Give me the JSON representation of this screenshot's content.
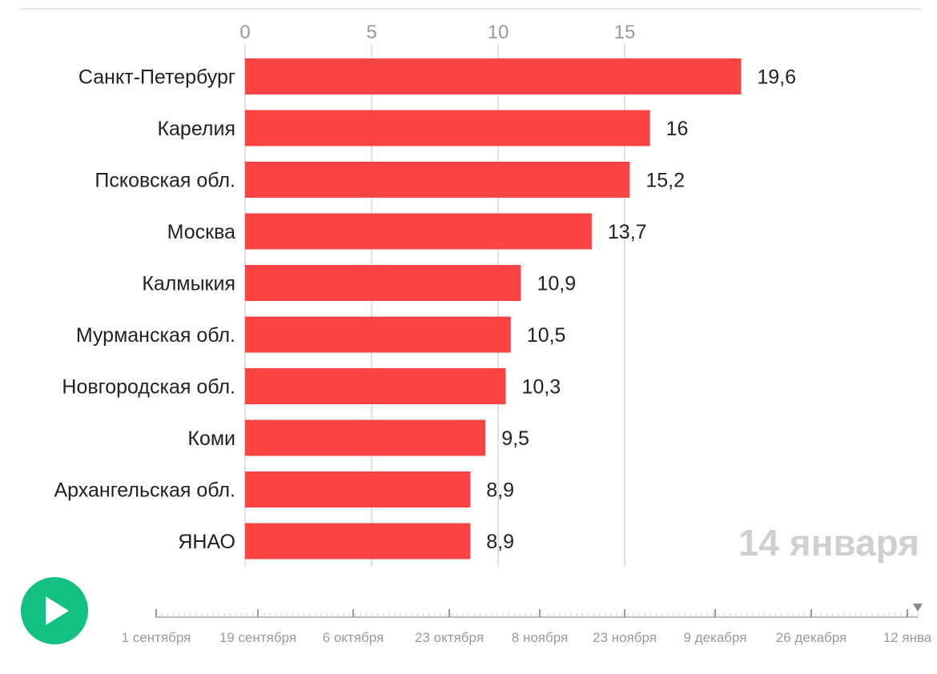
{
  "chart_data": {
    "type": "bar",
    "orientation": "horizontal",
    "categories": [
      "Санкт-Петербург",
      "Карелия",
      "Псковская обл.",
      "Москва",
      "Калмыкия",
      "Мурманская обл.",
      "Новгородская обл.",
      "Коми",
      "Архангельская обл.",
      "ЯНАО"
    ],
    "values": [
      19.6,
      16,
      15.2,
      13.7,
      10.9,
      10.5,
      10.3,
      9.5,
      8.9,
      8.9
    ],
    "value_labels": [
      "19,6",
      "16",
      "15,2",
      "13,7",
      "10,9",
      "10,5",
      "10,3",
      "9,5",
      "8,9",
      "8,9"
    ],
    "x_ticks": [
      "0",
      "5",
      "10",
      "15"
    ],
    "xlim": [
      0,
      20
    ],
    "grid": true,
    "bar_color": "#fc4445",
    "grid_color": "#e0e0e0"
  },
  "overlay_date": "14 января",
  "timeline": {
    "labels": [
      "1 сентября",
      "19 сентября",
      "6 октября",
      "23 октября",
      "8 ноября",
      "23 ноября",
      "9 декабря",
      "26 декабря",
      "12 янва"
    ]
  },
  "controls": {
    "play_icon": "play-icon",
    "play_color": "#12c082"
  }
}
